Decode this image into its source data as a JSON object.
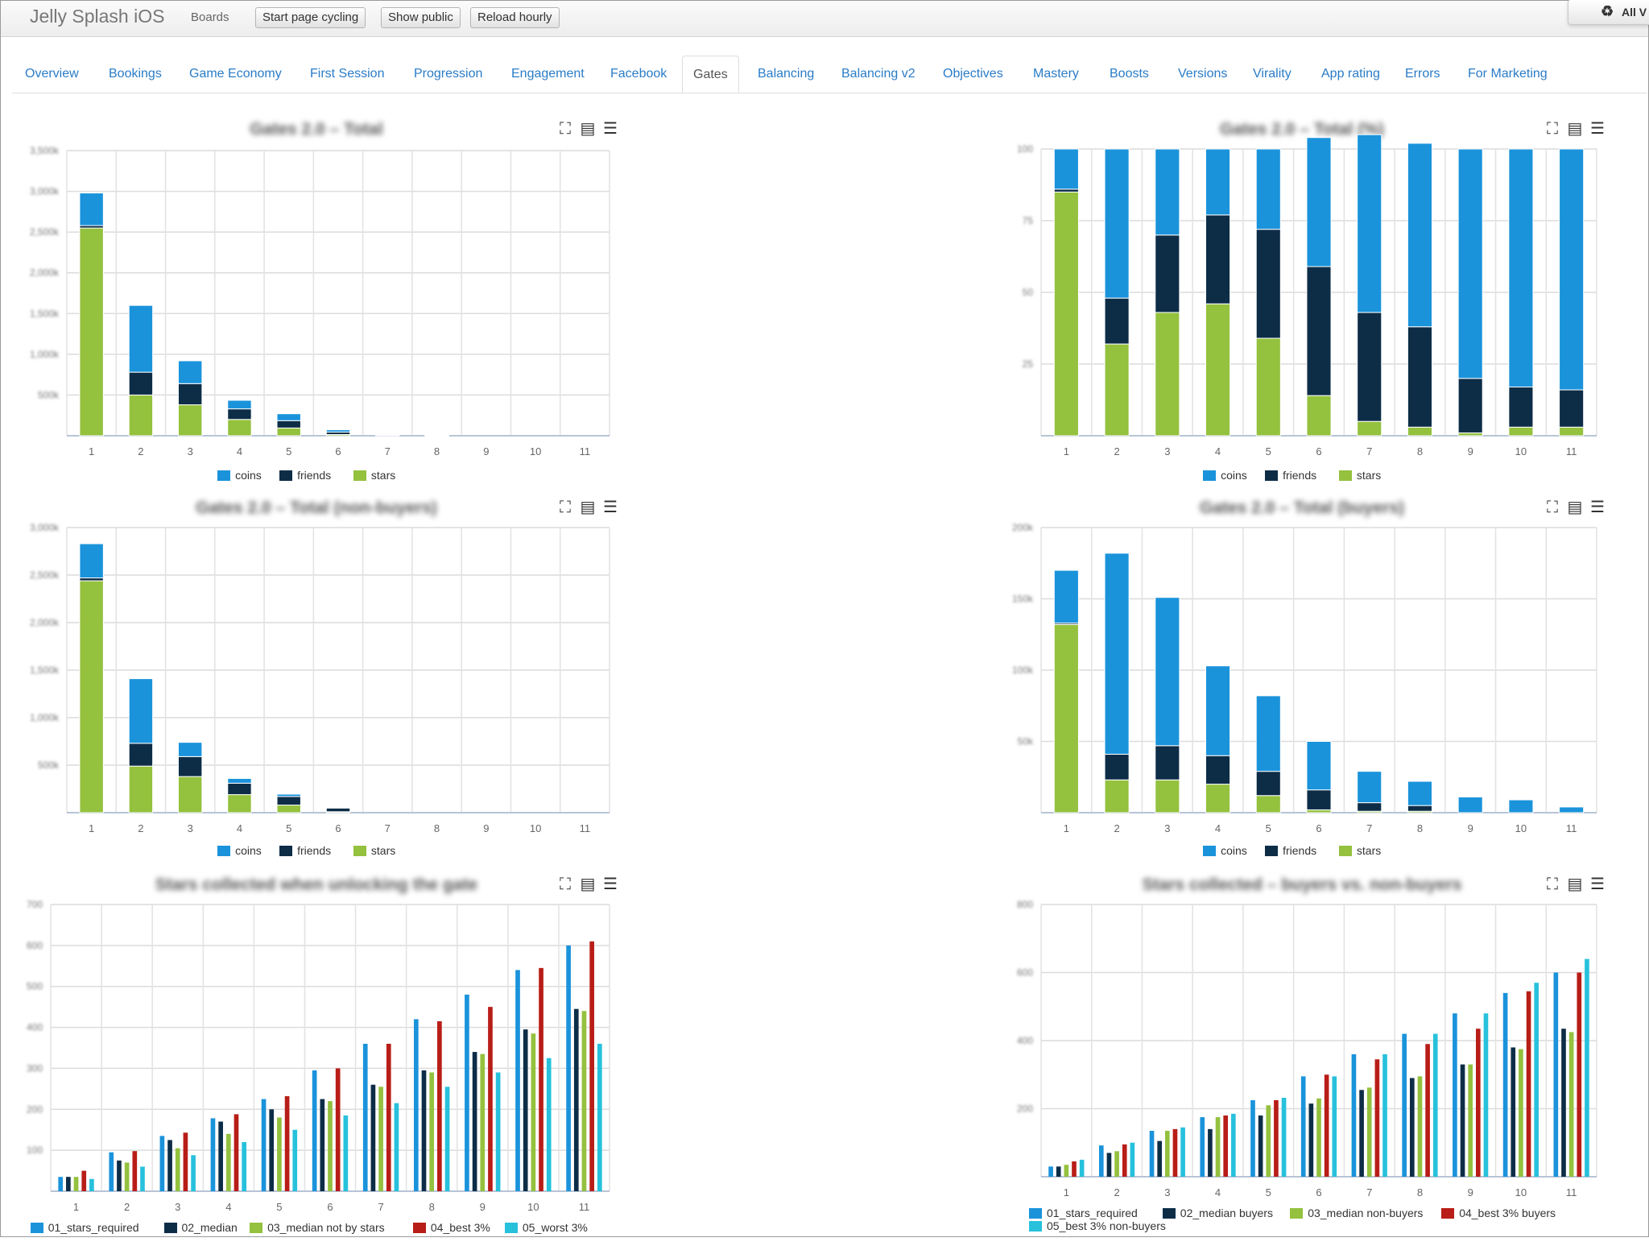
{
  "header": {
    "app_title": "Jelly Splash iOS",
    "boards_label": "Boards",
    "buttons": {
      "cycling": "Start page cycling",
      "public": "Show public",
      "reload": "Reload hourly"
    },
    "corner_label": "All V",
    "corner_icon": "recycle-icon"
  },
  "tabs": [
    "Overview",
    "Bookings",
    "Game Economy",
    "First Session",
    "Progression",
    "Engagement",
    "Facebook",
    "Gates",
    "Balancing",
    "Balancing v2",
    "Objectives",
    "Mastery",
    "Boosts",
    "Versions",
    "Virality",
    "App rating",
    "Errors",
    "For Marketing"
  ],
  "active_tab": "Gates",
  "icons": {
    "fullscreen": "fullscreen-icon",
    "table": "table-icon",
    "menu": "menu-icon"
  },
  "colors": {
    "coins": "#1a93db",
    "friends": "#0d2d47",
    "stars": "#94c13e",
    "best": "#b81d17",
    "worst": "#27c1dc",
    "link": "#2a7cc7"
  },
  "chart_data": [
    {
      "type": "bar",
      "stacked": true,
      "title": "Gates 2.0 – Total",
      "categories": [
        "1",
        "2",
        "3",
        "4",
        "5",
        "6",
        "7",
        "8",
        "9",
        "10",
        "11"
      ],
      "series": [
        {
          "name": "coins",
          "values": [
            400,
            820,
            280,
            105,
            85,
            28,
            8,
            5,
            0,
            0,
            0
          ]
        },
        {
          "name": "friends",
          "values": [
            30,
            280,
            260,
            130,
            90,
            30,
            5,
            2,
            0,
            0,
            0
          ]
        },
        {
          "name": "stars",
          "values": [
            2550,
            500,
            380,
            200,
            95,
            15,
            7,
            3,
            0,
            0,
            0
          ]
        }
      ],
      "ylim": [
        0,
        3500
      ],
      "yticks": [
        "3,500k",
        "3,000k",
        "2,500k",
        "2,000k",
        "1,500k",
        "1,000k",
        "500k"
      ],
      "legend": "bottom-center",
      "grid": true
    },
    {
      "type": "bar",
      "stacked": true,
      "title": "Gates 2.0 – Total (%)",
      "categories": [
        "1",
        "2",
        "3",
        "4",
        "5",
        "6",
        "7",
        "8",
        "9",
        "10",
        "11"
      ],
      "series": [
        {
          "name": "coins",
          "values": [
            14,
            52,
            30,
            23,
            28,
            45,
            62,
            64,
            80,
            83,
            84
          ]
        },
        {
          "name": "friends",
          "values": [
            1,
            16,
            27,
            31,
            38,
            45,
            38,
            35,
            19,
            14,
            13
          ]
        },
        {
          "name": "stars",
          "values": [
            85,
            32,
            43,
            46,
            34,
            14,
            5,
            3,
            1,
            3,
            3
          ]
        }
      ],
      "ylim": [
        0,
        100
      ],
      "yticks": [
        "100",
        "75",
        "50",
        "25"
      ],
      "legend": "bottom-center",
      "grid": true
    },
    {
      "type": "bar",
      "stacked": true,
      "title": "Gates 2.0 – Total (non-buyers)",
      "categories": [
        "1",
        "2",
        "3",
        "4",
        "5",
        "6",
        "7",
        "8",
        "9",
        "10",
        "11"
      ],
      "series": [
        {
          "name": "coins",
          "values": [
            360,
            680,
            150,
            50,
            25,
            5,
            0,
            0,
            0,
            0,
            0
          ]
        },
        {
          "name": "friends",
          "values": [
            30,
            240,
            210,
            120,
            90,
            40,
            0,
            0,
            0,
            0,
            0
          ]
        },
        {
          "name": "stars",
          "values": [
            2440,
            490,
            380,
            190,
            80,
            10,
            0,
            0,
            0,
            0,
            0
          ]
        }
      ],
      "ylim": [
        0,
        3000
      ],
      "yticks": [
        "3,000k",
        "2,500k",
        "2,000k",
        "1,500k",
        "1,000k",
        "500k"
      ],
      "legend": "bottom-center",
      "grid": true
    },
    {
      "type": "bar",
      "stacked": true,
      "title": "Gates 2.0 – Total (buyers)",
      "categories": [
        "1",
        "2",
        "3",
        "4",
        "5",
        "6",
        "7",
        "8",
        "9",
        "10",
        "11"
      ],
      "series": [
        {
          "name": "coins",
          "values": [
            37,
            141,
            104,
            63,
            53,
            34,
            22,
            17,
            11,
            9,
            4
          ]
        },
        {
          "name": "friends",
          "values": [
            1,
            18,
            24,
            20,
            17,
            14,
            6,
            4,
            0,
            0,
            0
          ]
        },
        {
          "name": "stars",
          "values": [
            132,
            23,
            23,
            20,
            12,
            2,
            1,
            1,
            0,
            0,
            0
          ]
        }
      ],
      "ylim": [
        0,
        200
      ],
      "yticks": [
        "200k",
        "150k",
        "100k",
        "50k"
      ],
      "legend": "bottom-center",
      "grid": true
    },
    {
      "type": "bar",
      "stacked": false,
      "title": "Stars collected when unlocking the gate",
      "categories": [
        "1",
        "2",
        "3",
        "4",
        "5",
        "6",
        "7",
        "8",
        "9",
        "10",
        "11"
      ],
      "series": [
        {
          "name": "01_stars_required",
          "values": [
            35,
            95,
            135,
            178,
            225,
            295,
            360,
            420,
            480,
            540,
            600
          ]
        },
        {
          "name": "02_median",
          "values": [
            35,
            75,
            125,
            170,
            200,
            225,
            260,
            295,
            340,
            395,
            445
          ]
        },
        {
          "name": "03_median not by stars",
          "values": [
            35,
            70,
            105,
            140,
            180,
            220,
            255,
            290,
            335,
            385,
            440
          ]
        },
        {
          "name": "04_best 3%",
          "values": [
            50,
            98,
            143,
            188,
            232,
            300,
            360,
            415,
            450,
            545,
            610
          ]
        },
        {
          "name": "05_worst 3%",
          "values": [
            30,
            60,
            88,
            120,
            150,
            185,
            215,
            255,
            290,
            325,
            360
          ]
        }
      ],
      "ylim": [
        0,
        700
      ],
      "yticks": [
        "700",
        "600",
        "500",
        "400",
        "300",
        "200",
        "100"
      ],
      "legend": "bottom-center",
      "grid": true
    },
    {
      "type": "bar",
      "stacked": false,
      "title": "Stars collected – buyers vs. non-buyers",
      "categories": [
        "1",
        "2",
        "3",
        "4",
        "5",
        "6",
        "7",
        "8",
        "9",
        "10",
        "11"
      ],
      "series": [
        {
          "name": "01_stars_required",
          "values": [
            30,
            92,
            135,
            175,
            225,
            295,
            360,
            420,
            480,
            540,
            600
          ]
        },
        {
          "name": "02_median buyers",
          "values": [
            30,
            70,
            105,
            140,
            180,
            215,
            255,
            290,
            330,
            380,
            435
          ]
        },
        {
          "name": "03_median non-buyers",
          "values": [
            35,
            75,
            135,
            175,
            210,
            230,
            262,
            295,
            330,
            375,
            425
          ]
        },
        {
          "name": "04_best 3% buyers",
          "values": [
            45,
            95,
            140,
            180,
            225,
            300,
            345,
            390,
            435,
            545,
            600
          ]
        },
        {
          "name": "05_best 3% non-buyers",
          "values": [
            50,
            100,
            145,
            185,
            232,
            295,
            360,
            420,
            480,
            570,
            640
          ]
        }
      ],
      "ylim": [
        0,
        800
      ],
      "yticks": [
        "800",
        "600",
        "400",
        "200"
      ],
      "legend": "bottom-center",
      "grid": true
    }
  ]
}
